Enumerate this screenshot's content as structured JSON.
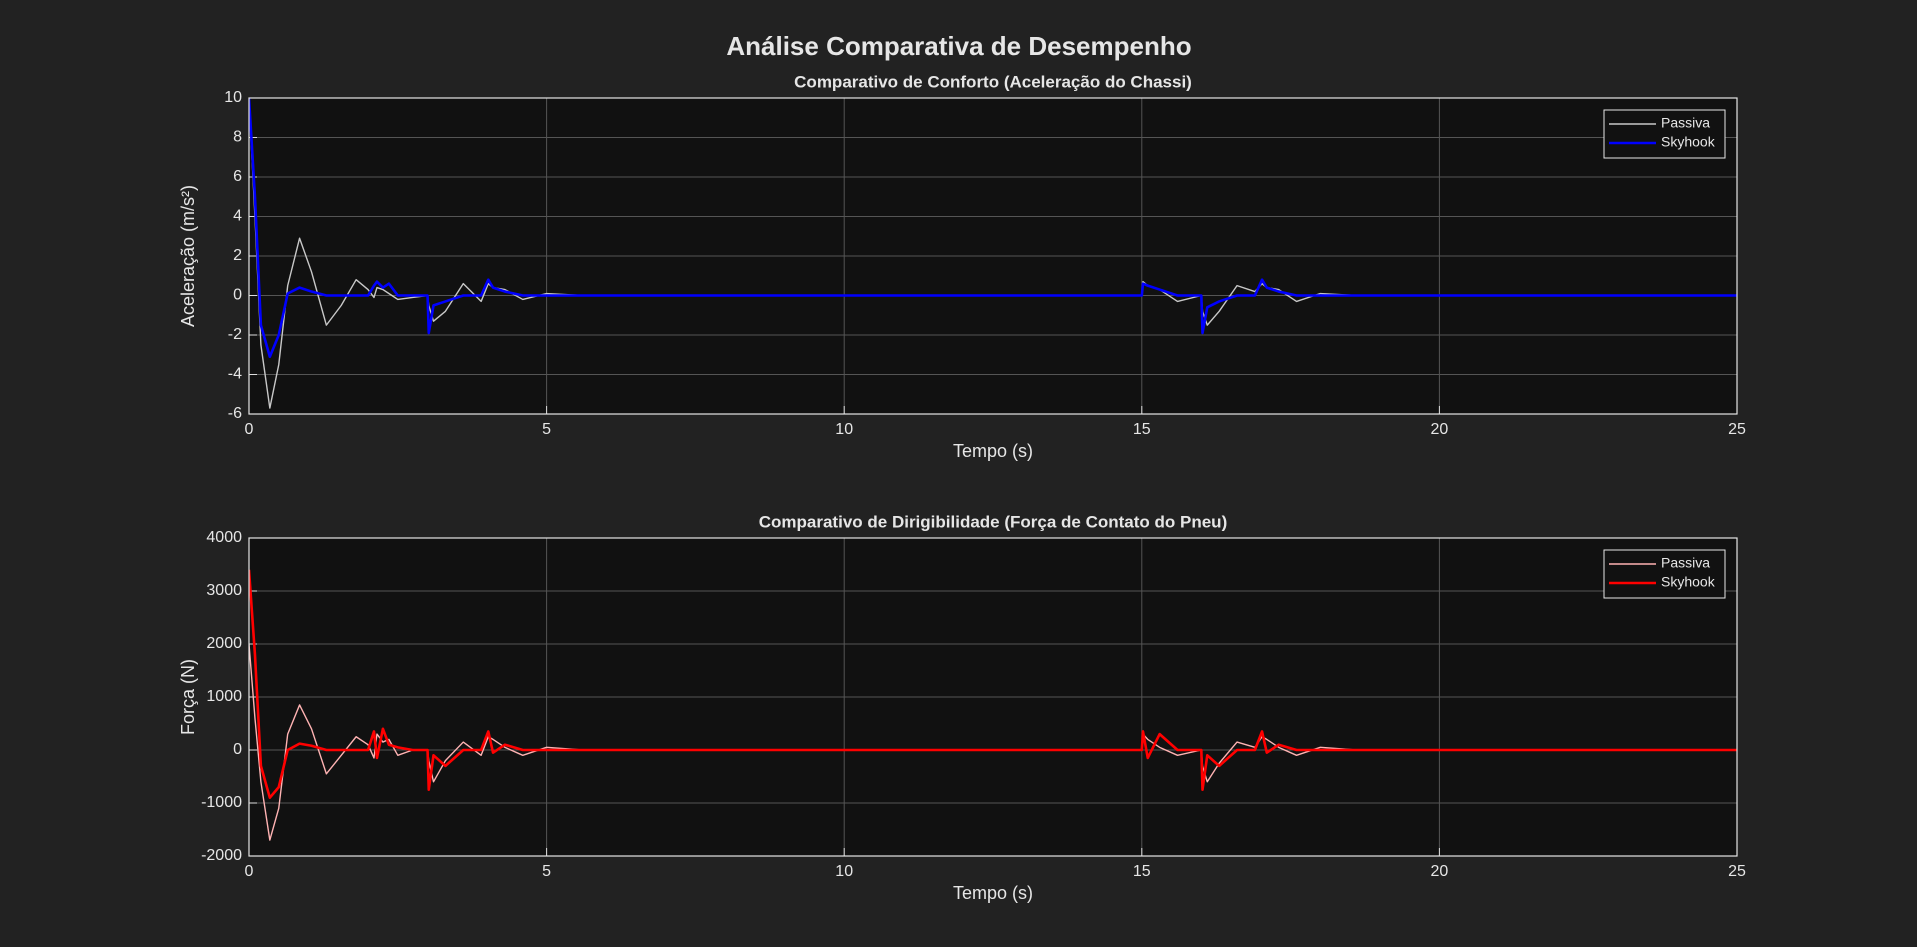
{
  "title": "Análise Comparativa de Desempenho",
  "chart_data": [
    {
      "type": "line",
      "title": "Comparativo de Conforto (Aceleração do Chassi)",
      "xlabel": "Tempo (s)",
      "ylabel": "Aceleração  (m/s²)",
      "x": [
        0,
        0.1,
        0.2,
        0.35,
        0.5,
        0.65,
        0.85,
        1.05,
        1.3,
        1.55,
        1.8,
        2.0,
        2.1,
        2.15,
        2.25,
        2.35,
        2.5,
        2.75,
        3.0,
        3.02,
        3.1,
        3.3,
        3.6,
        3.9,
        4.02,
        4.1,
        4.3,
        4.6,
        5.0,
        5.6,
        15.0,
        15.02,
        15.1,
        15.3,
        15.6,
        16.0,
        16.02,
        16.1,
        16.3,
        16.6,
        16.9,
        17.02,
        17.1,
        17.3,
        17.6,
        18.0,
        18.6,
        25
      ],
      "series": [
        {
          "name": "Passiva",
          "color": "#c8c8c8",
          "values": [
            10,
            4,
            -2.5,
            -5.7,
            -3.5,
            0.5,
            2.9,
            1.2,
            -1.5,
            -0.5,
            0.8,
            0.3,
            -0.1,
            0.4,
            0.3,
            0.1,
            -0.2,
            -0.1,
            0,
            -0.5,
            -1.3,
            -0.8,
            0.6,
            -0.3,
            0.6,
            0.4,
            0.3,
            -0.2,
            0.1,
            0,
            0,
            0.7,
            0.5,
            0.3,
            -0.3,
            0,
            -0.8,
            -1.5,
            -0.8,
            0.5,
            0.2,
            0.6,
            0.4,
            0.3,
            -0.3,
            0.1,
            0,
            0
          ]
        },
        {
          "name": "Skyhook",
          "color": "#0000ff",
          "values": [
            10,
            5,
            -1.5,
            -3.1,
            -2,
            0.1,
            0.4,
            0.2,
            0,
            0,
            0,
            0,
            0.5,
            0.7,
            0.4,
            0.6,
            0,
            0,
            0,
            -1.9,
            -0.5,
            -0.3,
            0,
            0,
            0.8,
            0.4,
            0.2,
            0,
            0,
            0,
            0,
            0.6,
            0.5,
            0.3,
            0,
            0,
            -1.9,
            -0.6,
            -0.3,
            0,
            0,
            0.8,
            0.4,
            0.2,
            0,
            0,
            0,
            0
          ]
        }
      ],
      "xlim": [
        0,
        25
      ],
      "xticks": [
        0,
        5,
        10,
        15,
        20,
        25
      ],
      "ylim": [
        -6,
        10
      ],
      "yticks": [
        -6,
        -4,
        -2,
        0,
        2,
        4,
        6,
        8,
        10
      ],
      "grid": true,
      "legend": "upper right"
    },
    {
      "type": "line",
      "title": "Comparativo de Dirigibilidade (Força de Contato do Pneu)",
      "xlabel": "Tempo (s)",
      "ylabel": "Força (N)",
      "x": [
        0,
        0.1,
        0.2,
        0.35,
        0.5,
        0.65,
        0.85,
        1.05,
        1.3,
        1.55,
        1.8,
        2.0,
        2.1,
        2.15,
        2.25,
        2.35,
        2.5,
        2.75,
        3.0,
        3.02,
        3.1,
        3.3,
        3.6,
        3.9,
        4.02,
        4.1,
        4.3,
        4.6,
        5.0,
        5.6,
        15.0,
        15.02,
        15.1,
        15.3,
        15.6,
        16.0,
        16.02,
        16.1,
        16.3,
        16.6,
        16.9,
        17.02,
        17.1,
        17.3,
        17.6,
        18.0,
        18.6,
        25
      ],
      "series": [
        {
          "name": "Passiva",
          "color": "#ffb3b3",
          "values": [
            2000,
            600,
            -600,
            -1700,
            -1100,
            300,
            850,
            400,
            -450,
            -100,
            250,
            100,
            -150,
            300,
            150,
            200,
            -100,
            0,
            0,
            -200,
            -600,
            -200,
            150,
            -100,
            250,
            200,
            50,
            -100,
            50,
            0,
            0,
            300,
            200,
            50,
            -100,
            0,
            -300,
            -600,
            -250,
            150,
            50,
            250,
            200,
            50,
            -100,
            50,
            0,
            0
          ]
        },
        {
          "name": "Skyhook",
          "color": "#ff0000",
          "values": [
            3400,
            1800,
            -300,
            -900,
            -700,
            0,
            120,
            80,
            0,
            0,
            0,
            0,
            350,
            -150,
            400,
            100,
            50,
            0,
            0,
            -750,
            -100,
            -300,
            0,
            0,
            350,
            -50,
            100,
            0,
            0,
            0,
            0,
            350,
            -150,
            300,
            0,
            0,
            -750,
            -100,
            -300,
            0,
            0,
            350,
            -50,
            100,
            0,
            0,
            0,
            0
          ]
        }
      ],
      "xlim": [
        0,
        25
      ],
      "xticks": [
        0,
        5,
        10,
        15,
        20,
        25
      ],
      "ylim": [
        -2000,
        4000
      ],
      "yticks": [
        -2000,
        -1000,
        0,
        1000,
        2000,
        3000,
        4000
      ],
      "grid": true,
      "legend": "upper right"
    }
  ]
}
